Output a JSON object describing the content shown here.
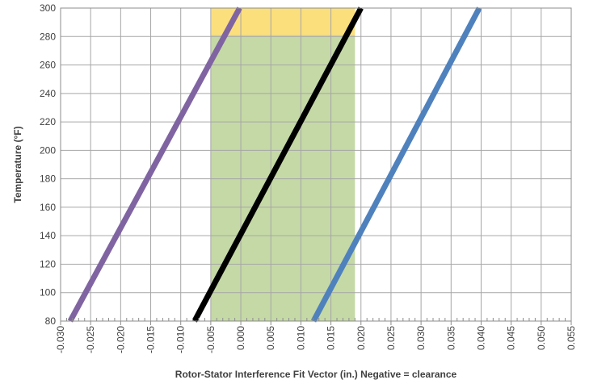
{
  "chart_data": {
    "type": "line",
    "title": "",
    "xlabel": "Rotor-Stator Interference Fit Vector (in.) Negative = clearance",
    "ylabel": "Temperature (°F)",
    "xlim": [
      -0.03,
      0.055
    ],
    "ylim": [
      80,
      300
    ],
    "x_ticks": [
      "-0.030",
      "-0.025",
      "-0.020",
      "-0.015",
      "-0.010",
      "-0.005",
      "0.000",
      "0.005",
      "0.010",
      "0.015",
      "0.020",
      "0.025",
      "0.030",
      "0.035",
      "0.040",
      "0.045",
      "0.050",
      "0.055"
    ],
    "y_ticks": [
      "80",
      "100",
      "120",
      "140",
      "160",
      "180",
      "200",
      "220",
      "240",
      "260",
      "280",
      "300"
    ],
    "grid": true,
    "minor_x_ticks_per_major": 5,
    "regions": [
      {
        "x": [
          -0.005,
          0.019
        ],
        "y": [
          80,
          281
        ],
        "color": "#c5d9a6"
      },
      {
        "x": [
          -0.005,
          0.019
        ],
        "y": [
          281,
          300
        ],
        "color": "#fcdf7d"
      }
    ],
    "series": [
      {
        "color": "#8064a2",
        "x": [
          -0.0284,
          -0.0002
        ],
        "y": [
          80,
          300
        ]
      },
      {
        "color": "#000000",
        "x": [
          -0.0077,
          0.02
        ],
        "y": [
          80,
          300
        ]
      },
      {
        "color": "#4f81bd",
        "x": [
          0.0121,
          0.0397
        ],
        "y": [
          80,
          300
        ]
      }
    ]
  }
}
